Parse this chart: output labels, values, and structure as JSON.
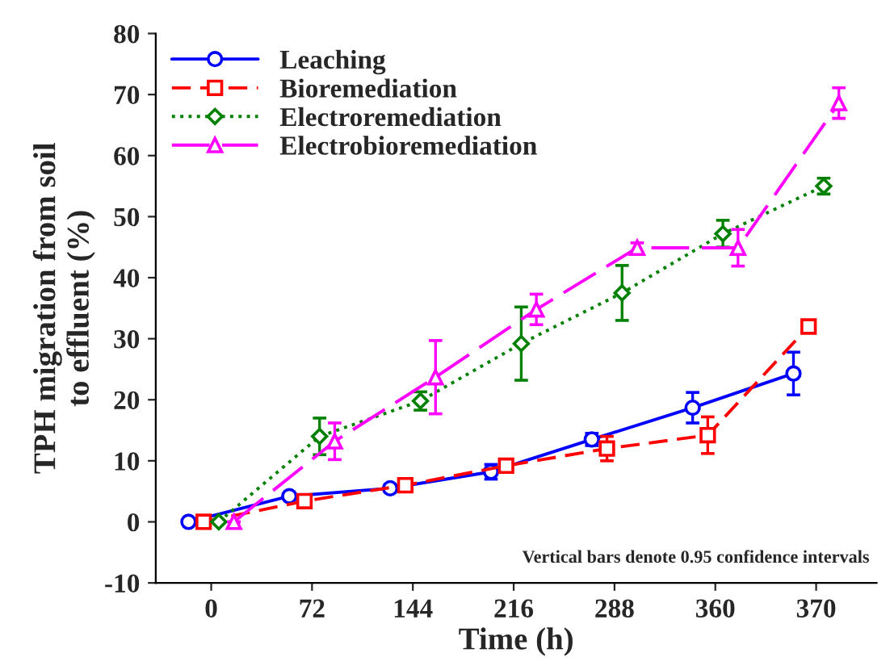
{
  "chart_data": {
    "type": "line",
    "xlabel": "Time (h)",
    "ylabel": "TPH migration from soil\nto effluent (%)",
    "categories": [
      "0",
      "72",
      "144",
      "216",
      "288",
      "360",
      "370"
    ],
    "series": [
      {
        "name": "Leaching",
        "color": "#0000ff",
        "marker": "circle",
        "line_style": "solid",
        "values": [
          0,
          4.2,
          5.5,
          8.2,
          13.5,
          18.7,
          24.3
        ],
        "errors": [
          null,
          null,
          0.6,
          1.2,
          1,
          2.5,
          3.5
        ]
      },
      {
        "name": "Bioremediation",
        "color": "#ff0000",
        "marker": "square",
        "line_style": "dashed",
        "values": [
          0,
          3.4,
          6,
          9.2,
          12,
          14.2,
          32
        ],
        "errors": [
          null,
          null,
          1,
          0.8,
          2,
          3,
          null
        ]
      },
      {
        "name": "Electroremediation",
        "color": "#008000",
        "marker": "diamond",
        "line_style": "dotted",
        "values": [
          0,
          14,
          19.8,
          29.2,
          37.5,
          47.2,
          55
        ],
        "errors": [
          null,
          3,
          1.5,
          6,
          4.5,
          2.2,
          1.3
        ]
      },
      {
        "name": "Electrobioremediation",
        "color": "#ff00ff",
        "marker": "triangle",
        "line_style": "dashed",
        "values": [
          0,
          13.2,
          23.7,
          34.8,
          44.9,
          44.9,
          68.6
        ],
        "errors": [
          null,
          3,
          6,
          2.5,
          0.8,
          3,
          2.5
        ]
      }
    ],
    "ylim": [
      -10,
      80
    ],
    "yticks": [
      -10,
      0,
      10,
      20,
      30,
      40,
      50,
      60,
      70,
      80
    ],
    "legend": "top left",
    "grid": false,
    "annotations": [
      "Vertical bars denote 0.95 confidence intervals"
    ]
  }
}
